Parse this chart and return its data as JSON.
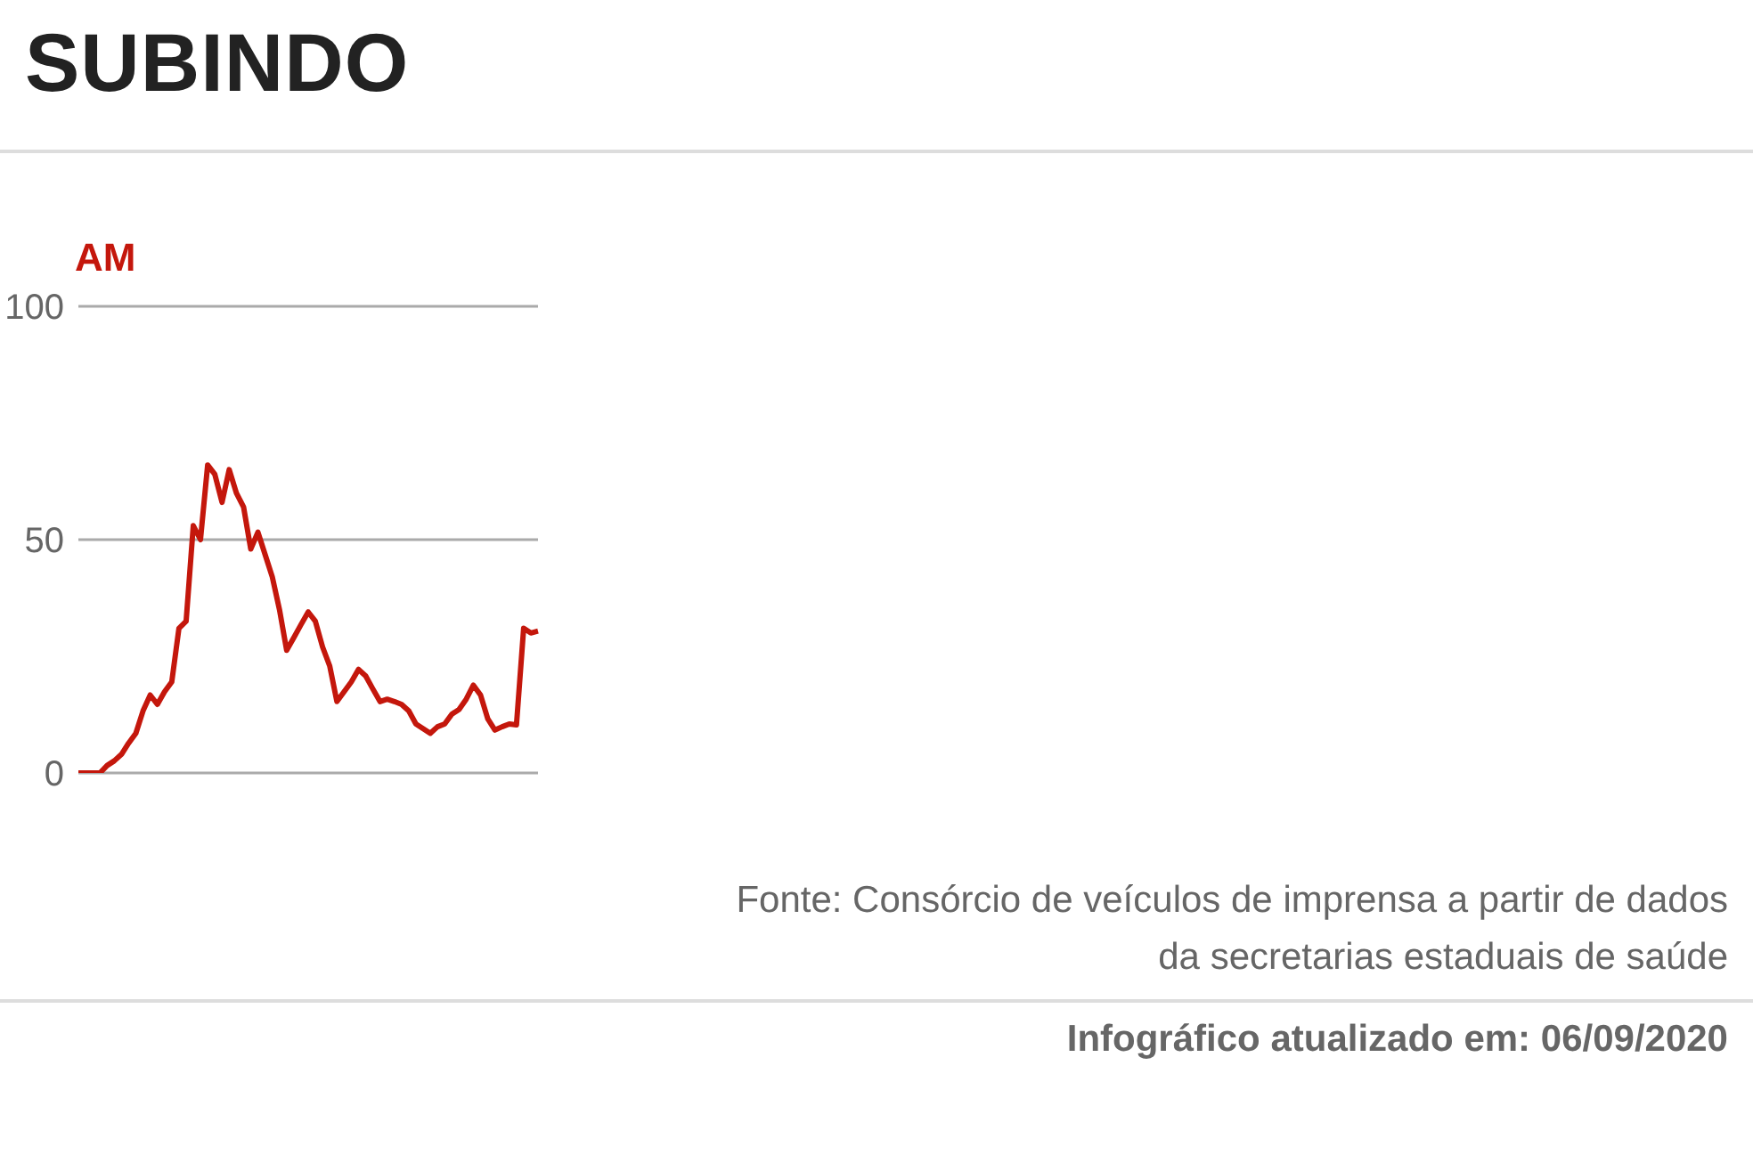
{
  "chart_data": {
    "type": "line",
    "title": "SUBINDO",
    "categories": [
      null,
      null,
      null,
      null,
      null,
      null,
      null,
      null,
      null,
      null,
      null,
      null,
      null,
      null,
      null,
      null,
      null,
      null,
      null,
      null,
      null,
      null,
      null,
      null,
      null,
      null,
      null,
      null,
      null,
      null,
      null,
      null,
      null,
      null,
      null,
      null,
      null,
      null,
      null,
      null,
      null,
      null,
      null,
      null,
      null,
      null,
      null,
      null,
      null,
      null,
      null,
      null,
      null,
      null,
      null,
      null,
      null,
      null,
      null,
      null,
      null,
      null,
      null,
      null,
      null
    ],
    "series": [
      {
        "name": "AM",
        "color": "#c4170c",
        "values": [
          0,
          0,
          0,
          0,
          1.6,
          2.6,
          4,
          6.4,
          8.5,
          13.3,
          16.7,
          14.7,
          17.4,
          19.5,
          31,
          32.5,
          53,
          50,
          66,
          64,
          58,
          65,
          60,
          57,
          48,
          51.6,
          46.8,
          42,
          35,
          26.3,
          29,
          31.8,
          34.5,
          32.5,
          27,
          22.9,
          15.3,
          17.4,
          19.5,
          22.2,
          20.8,
          18,
          15.3,
          15.8,
          15.3,
          14.7,
          13.3,
          10.5,
          9.5,
          8.5,
          9.9,
          10.5,
          12.6,
          13.6,
          15.8,
          18.8,
          16.7,
          11.6,
          9.2,
          9.9,
          10.5,
          10.3,
          31,
          30,
          30.4
        ]
      }
    ],
    "ylim": [
      0,
      100
    ],
    "yticks": [
      0,
      50,
      100
    ],
    "grid": "y",
    "tick_labels": "y",
    "annotations": [
      "Fonte: Consórcio de veículos de imprensa a partir de dados da secretarias estaduais de saúde",
      "Infográfico atualizado em: 06/09/2020"
    ]
  }
}
